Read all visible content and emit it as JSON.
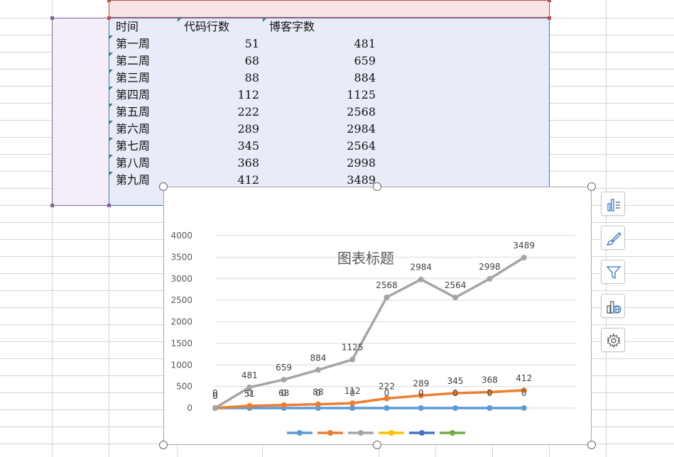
{
  "table": {
    "headers": [
      "时间",
      "代码行数",
      "博客字数"
    ],
    "rows": [
      [
        "第一周",
        "51",
        "481"
      ],
      [
        "第二周",
        "68",
        "659"
      ],
      [
        "第三周",
        "88",
        "884"
      ],
      [
        "第四周",
        "112",
        "1125"
      ],
      [
        "第五周",
        "222",
        "2568"
      ],
      [
        "第六周",
        "289",
        "2984"
      ],
      [
        "第七周",
        "345",
        "2564"
      ],
      [
        "第八周",
        "368",
        "2998"
      ],
      [
        "第九周",
        "412",
        "3489"
      ]
    ]
  },
  "chart_data": {
    "type": "line",
    "title": "图表标题",
    "ylim": [
      0,
      4000
    ],
    "yticks": [
      "0",
      "500",
      "1000",
      "1500",
      "2000",
      "2500",
      "3000",
      "3500",
      "4000"
    ],
    "grid": true,
    "legend_position": "bottom",
    "series": [
      {
        "color": "#5b9bd5",
        "values": [
          0,
          0,
          0,
          0,
          0,
          0,
          0,
          0,
          0,
          0
        ],
        "labels": [
          "0",
          "0",
          "0",
          "0",
          "0",
          "0",
          "0",
          "0",
          "0",
          "0"
        ]
      },
      {
        "color": "#ed7d31",
        "values": [
          0,
          51,
          68,
          88,
          112,
          222,
          289,
          345,
          368,
          412
        ],
        "labels": [
          "0",
          "51",
          "68",
          "88",
          "112",
          "222",
          "289",
          "345",
          "368",
          "412"
        ]
      },
      {
        "color": "#a5a5a5",
        "values": [
          0,
          481,
          659,
          884,
          1125,
          2568,
          2984,
          2564,
          2998,
          3489
        ],
        "labels": [
          "0",
          "481",
          "659",
          "884",
          "1125",
          "2568",
          "2984",
          "2564",
          "2998",
          "3489"
        ]
      },
      {
        "color": "#ffc000",
        "values": []
      },
      {
        "color": "#4472c4",
        "values": []
      },
      {
        "color": "#70ad47",
        "values": []
      }
    ]
  },
  "side_buttons": [
    {
      "icon": "chart-elements-icon"
    },
    {
      "icon": "brush-icon"
    },
    {
      "icon": "filter-icon"
    },
    {
      "icon": "chart-globe-icon"
    },
    {
      "icon": "gear-icon"
    }
  ]
}
